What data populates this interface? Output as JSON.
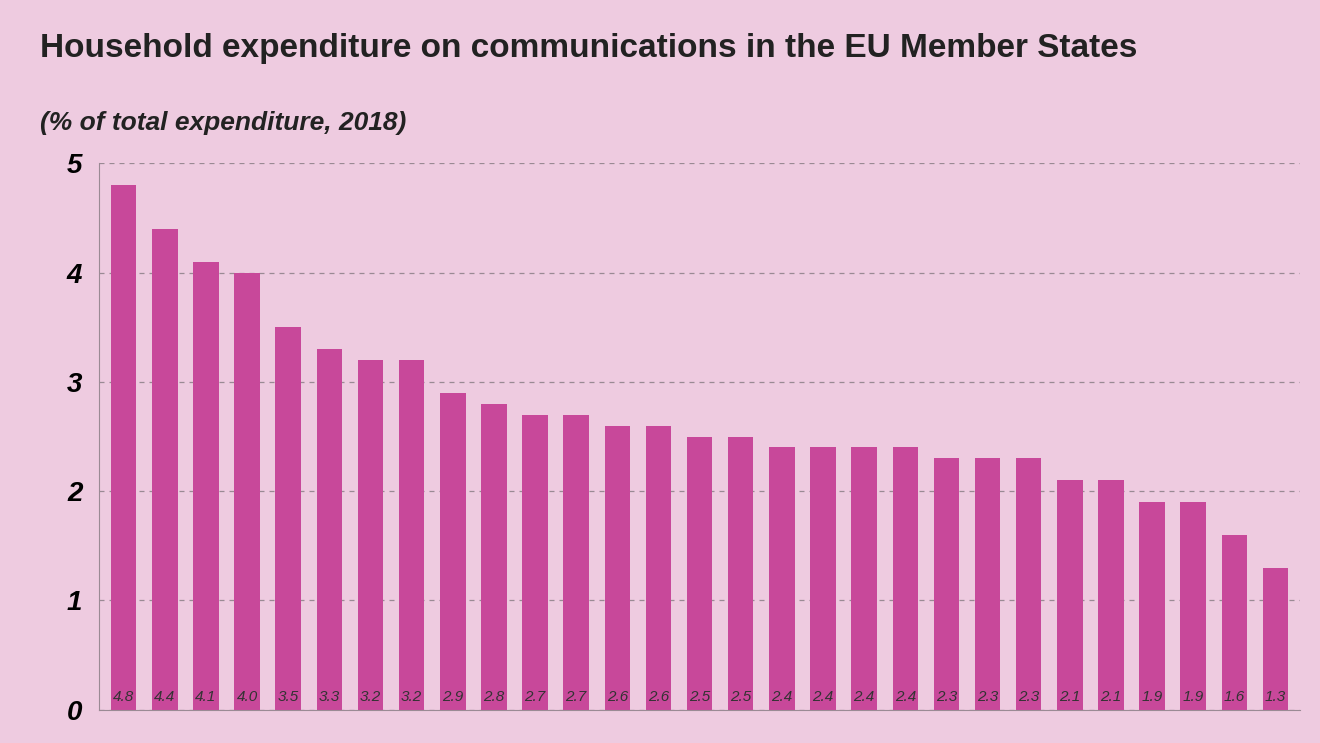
{
  "chart_data": {
    "type": "bar",
    "title": "Household expenditure on communications in the EU Member States",
    "subtitle": "(% of total expenditure, 2018)",
    "categories": [
      null,
      null,
      null,
      null,
      null,
      null,
      null,
      null,
      null,
      null,
      null,
      null,
      null,
      null,
      null,
      null,
      null,
      null,
      null,
      null,
      null,
      null,
      null,
      null,
      null,
      null,
      null,
      null,
      null
    ],
    "values": [
      4.8,
      4.4,
      4.1,
      4.0,
      3.5,
      3.3,
      3.2,
      3.2,
      2.9,
      2.8,
      2.7,
      2.7,
      2.6,
      2.6,
      2.5,
      2.5,
      2.4,
      2.4,
      2.4,
      2.4,
      2.3,
      2.3,
      2.3,
      2.1,
      2.1,
      1.9,
      1.9,
      1.6,
      1.3
    ],
    "value_labels": [
      "4.8",
      "4.4",
      "4.1",
      "4.0",
      "3.5",
      "3.3",
      "3.2",
      "3.2",
      "2.9",
      "2.8",
      "2.7",
      "2.7",
      "2.6",
      "2.6",
      "2.5",
      "2.5",
      "2.4",
      "2.4",
      "2.4",
      "2.4",
      "2.3",
      "2.3",
      "2.3",
      "2.1",
      "2.1",
      "1.9",
      "1.9",
      "1.6",
      "1.3"
    ],
    "data_labels": true,
    "color": "#c8489a",
    "ylim": [
      0,
      5
    ],
    "yticks": [
      0,
      1,
      2,
      3,
      4,
      5
    ],
    "grid": true,
    "tick_labels": "y"
  }
}
